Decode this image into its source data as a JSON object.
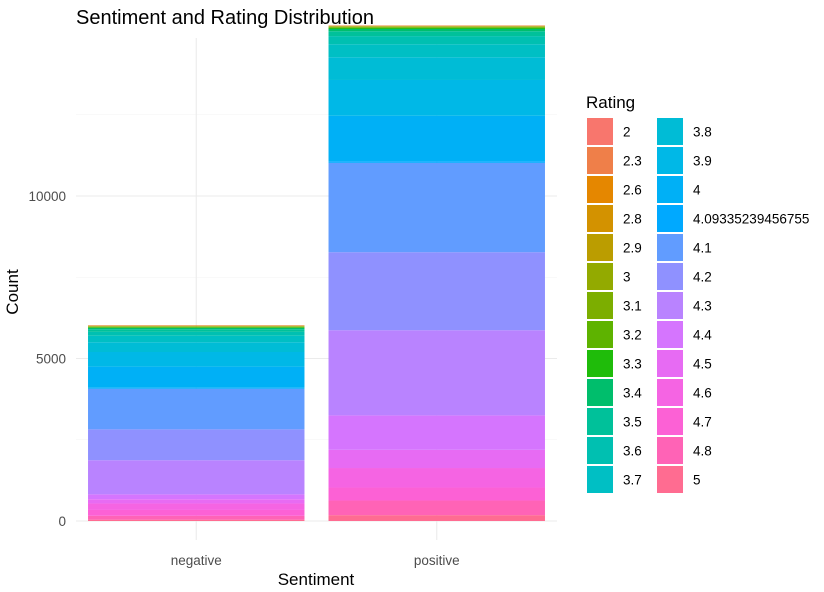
{
  "chart_data": {
    "type": "bar",
    "stacked": true,
    "title": "Sentiment and Rating Distribution",
    "xlabel": "Sentiment",
    "ylabel": "Count",
    "categories": [
      "negative",
      "positive"
    ],
    "ylim": [
      0,
      14500
    ],
    "yticks": [
      0,
      5000,
      10000
    ],
    "ytick_labels": [
      "0",
      "5000",
      "10000"
    ],
    "grid": true,
    "legend_position": "right",
    "legend_title": "Rating",
    "series": [
      {
        "name": "5",
        "color": "#FF6C91",
        "values": [
          40,
          180
        ]
      },
      {
        "name": "4.8",
        "color": "#FF63B6",
        "values": [
          120,
          450
        ]
      },
      {
        "name": "4.7",
        "color": "#FC61D5",
        "values": [
          180,
          400
        ]
      },
      {
        "name": "4.6",
        "color": "#F564E3",
        "values": [
          200,
          600
        ]
      },
      {
        "name": "4.5",
        "color": "#E76BF3",
        "values": [
          130,
          560
        ]
      },
      {
        "name": "4.4",
        "color": "#D575FE",
        "values": [
          150,
          1060
        ]
      },
      {
        "name": "4.3",
        "color": "#B983FF",
        "values": [
          1050,
          2620
        ]
      },
      {
        "name": "4.2",
        "color": "#8F91FF",
        "values": [
          950,
          2400
        ]
      },
      {
        "name": "4.1",
        "color": "#619CFF",
        "values": [
          1250,
          2750
        ]
      },
      {
        "name": "4.09335239456755",
        "color": "#00A9FF",
        "values": [
          30,
          50
        ]
      },
      {
        "name": "4",
        "color": "#00B0F6",
        "values": [
          650,
          1400
        ]
      },
      {
        "name": "3.9",
        "color": "#00B8E7",
        "values": [
          450,
          1100
        ]
      },
      {
        "name": "3.8",
        "color": "#00BCD6",
        "values": [
          300,
          700
        ]
      },
      {
        "name": "3.7",
        "color": "#00BFC4",
        "values": [
          200,
          400
        ]
      },
      {
        "name": "3.6",
        "color": "#00C0B1",
        "values": [
          120,
          250
        ]
      },
      {
        "name": "3.5",
        "color": "#00C19A",
        "values": [
          80,
          150
        ]
      },
      {
        "name": "3.4",
        "color": "#00BE6C",
        "values": [
          40,
          70
        ]
      },
      {
        "name": "3.3",
        "color": "#1FBC0A",
        "values": [
          20,
          30
        ]
      },
      {
        "name": "3.2",
        "color": "#5EB300",
        "values": [
          15,
          20
        ]
      },
      {
        "name": "3.1",
        "color": "#7CAE00",
        "values": [
          12,
          15
        ]
      },
      {
        "name": "3",
        "color": "#93AA00",
        "values": [
          10,
          15
        ]
      },
      {
        "name": "2.9",
        "color": "#BB9D00",
        "values": [
          8,
          10
        ]
      },
      {
        "name": "2.8",
        "color": "#D39200",
        "values": [
          8,
          8
        ]
      },
      {
        "name": "2.6",
        "color": "#E58700",
        "values": [
          5,
          5
        ]
      },
      {
        "name": "2.3",
        "color": "#EF7F49",
        "values": [
          3,
          3
        ]
      },
      {
        "name": "2",
        "color": "#F8766D",
        "values": [
          5,
          4
        ]
      }
    ],
    "legend_order": [
      "2",
      "2.3",
      "2.6",
      "2.8",
      "2.9",
      "3",
      "3.1",
      "3.2",
      "3.3",
      "3.4",
      "3.5",
      "3.6",
      "3.7",
      "3.8",
      "3.9",
      "4",
      "4.09335239456755",
      "4.1",
      "4.2",
      "4.3",
      "4.4",
      "4.5",
      "4.6",
      "4.7",
      "4.8",
      "5"
    ]
  }
}
